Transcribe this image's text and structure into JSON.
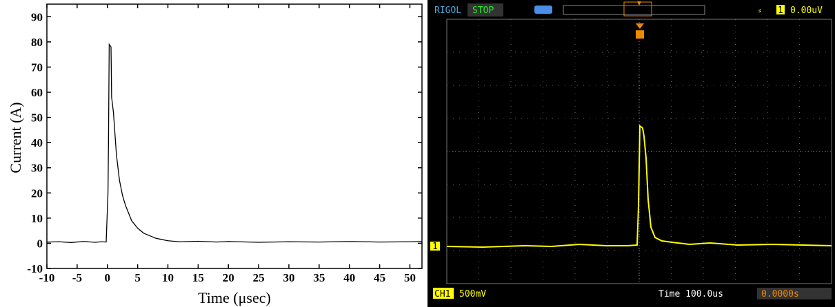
{
  "chart_data": {
    "type": "line",
    "x_label": "Time (μsec)",
    "y_label": "Current (A)",
    "x": [
      -10,
      -8,
      -6,
      -4,
      -2,
      -1,
      -0.2,
      0.1,
      0.2,
      0.3,
      0.6,
      0.7,
      1.0,
      1.5,
      2,
      2.5,
      3,
      4,
      5,
      6,
      7,
      8,
      9,
      10,
      12,
      15,
      18,
      20,
      25,
      30,
      35,
      40,
      45,
      50,
      52
    ],
    "values": [
      0.5,
      0.6,
      0.3,
      0.7,
      0.4,
      0.6,
      0.5,
      20,
      45,
      79,
      78,
      58,
      52,
      35,
      25,
      19,
      15,
      9,
      6,
      4,
      3,
      2,
      1.5,
      1,
      0.6,
      0.8,
      0.5,
      0.7,
      0.4,
      0.6,
      0.5,
      0.7,
      0.5,
      0.6,
      0.7
    ],
    "color": "#000000",
    "xlim": [
      -10,
      52
    ],
    "xticks": [
      -10,
      -5,
      0,
      5,
      10,
      15,
      20,
      25,
      30,
      35,
      40,
      45,
      50
    ],
    "ylim": [
      -10,
      95
    ],
    "yticks": [
      -10,
      0,
      10,
      20,
      30,
      40,
      50,
      60,
      70,
      80,
      90
    ]
  },
  "scope": {
    "brand": "RIGOL",
    "status": "STOP",
    "trigger_channel": "1",
    "trigger_level": "0.00uV",
    "channel_marker": "1",
    "channel": "CH1",
    "scale": "500mV",
    "timebase": "Time 100.0us",
    "trigger_offset": "0.0000s"
  }
}
